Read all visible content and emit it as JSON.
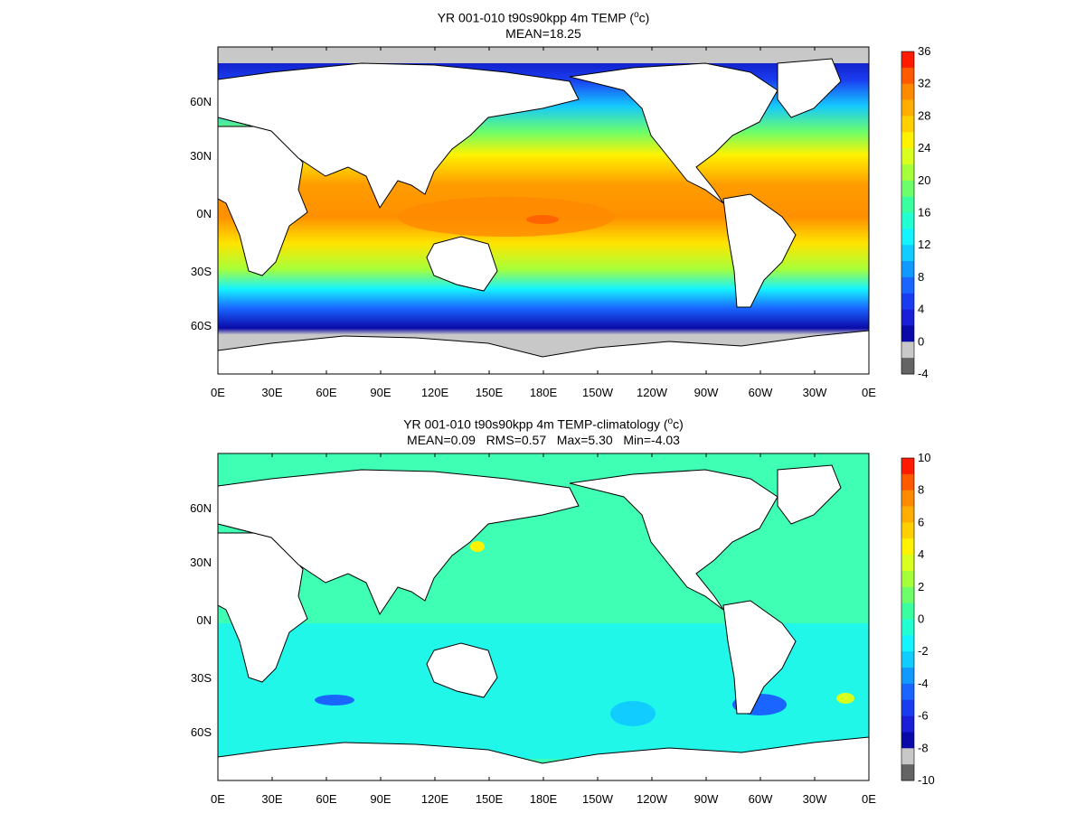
{
  "panels": [
    {
      "id": "top",
      "title_prefix": "YR 001-010 t90s90kpp 4m TEMP (",
      "title_sup": "o",
      "title_suffix": "c)",
      "stats": "MEAN=18.25",
      "lat_labels": [
        "60N",
        "30N",
        "0N",
        "30S",
        "60S"
      ],
      "lon_labels": [
        "0E",
        "30E",
        "60E",
        "90E",
        "120E",
        "150E",
        "180E",
        "150W",
        "120W",
        "90W",
        "60W",
        "30W",
        "0E"
      ],
      "colorbar": {
        "labels": [
          "36",
          "32",
          "28",
          "24",
          "20",
          "16",
          "12",
          "8",
          "4",
          "0",
          "-4"
        ],
        "colors": [
          "#ff1a00",
          "#ff5a00",
          "#ff8a00",
          "#ffad00",
          "#ffcf00",
          "#fff200",
          "#d8ff1e",
          "#a6ff3a",
          "#6cff6a",
          "#3affa0",
          "#22ffd2",
          "#14f4ff",
          "#10ccff",
          "#1299ff",
          "#1a64ff",
          "#1a3cf0",
          "#1a1ed4",
          "#0a0aa8",
          "#c8c8c8",
          "#646464"
        ]
      }
    },
    {
      "id": "bottom",
      "title_prefix": "YR 001-010 t90s90kpp 4m TEMP-climatology (",
      "title_sup": "o",
      "title_suffix": "c)",
      "stats": "MEAN=0.09   RMS=0.57   Max=5.30   Min=-4.03",
      "lat_labels": [
        "60N",
        "30N",
        "0N",
        "30S",
        "60S"
      ],
      "lon_labels": [
        "0E",
        "30E",
        "60E",
        "90E",
        "120E",
        "150E",
        "180E",
        "150W",
        "120W",
        "90W",
        "60W",
        "30W",
        "0E"
      ],
      "colorbar": {
        "labels": [
          "10",
          "8",
          "6",
          "4",
          "2",
          "0",
          "-2",
          "-4",
          "-6",
          "-8",
          "-10"
        ],
        "colors": [
          "#ff1a00",
          "#ff5a00",
          "#ff8a00",
          "#ffad00",
          "#ffcf00",
          "#fff200",
          "#d8ff1e",
          "#a6ff3a",
          "#6cff6a",
          "#3affa0",
          "#22ffd2",
          "#14f4ff",
          "#10ccff",
          "#1299ff",
          "#1a64ff",
          "#1a3cf0",
          "#1a1ed4",
          "#0a0aa8",
          "#c8c8c8",
          "#646464"
        ]
      }
    }
  ]
}
